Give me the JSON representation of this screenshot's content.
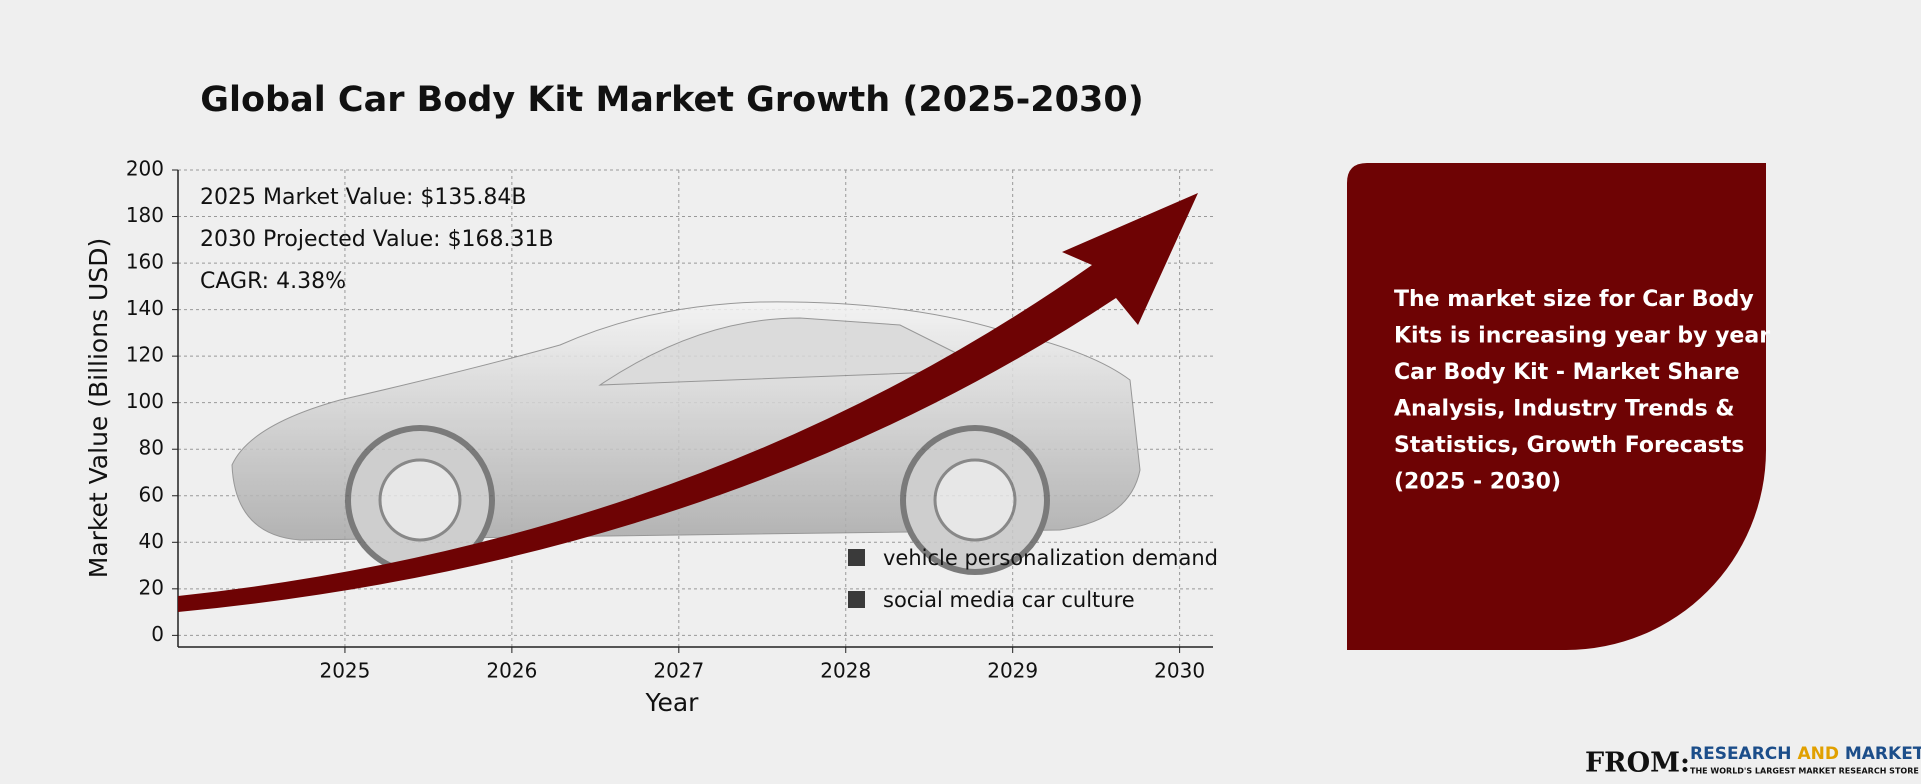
{
  "chart_data": {
    "type": "line",
    "title": "Global Car Body Kit Market Growth (2025-2030)",
    "xlabel": "Year",
    "ylabel": "Market Value (Billions USD)",
    "xlim": [
      2024,
      2030.2
    ],
    "xticks": [
      2025,
      2026,
      2027,
      2028,
      2029,
      2030
    ],
    "ylim": [
      -5,
      200
    ],
    "yticks": [
      0,
      20,
      40,
      60,
      80,
      100,
      120,
      140,
      160,
      180,
      200
    ],
    "grid": true,
    "annotations": [
      "2025 Market Value: $135.84B",
      "2030 Projected Value: $168.31B",
      "CAGR: 4.38%"
    ],
    "legend": [
      "vehicle personalization demand",
      "social media car culture"
    ]
  },
  "panel": {
    "lines": [
      "The market size for Car Body",
      "Kits is increasing year by year",
      "Car Body Kit - Market Share",
      "Analysis, Industry Trends &",
      "Statistics, Growth Forecasts",
      "(2025 - 2030)"
    ]
  },
  "footer": {
    "from": "FROM:",
    "brand_1": "RESEARCH",
    "brand_2": "AND",
    "brand_3": "MARKETS",
    "tagline": "THE WORLD'S LARGEST MARKET RESEARCH STORE"
  }
}
